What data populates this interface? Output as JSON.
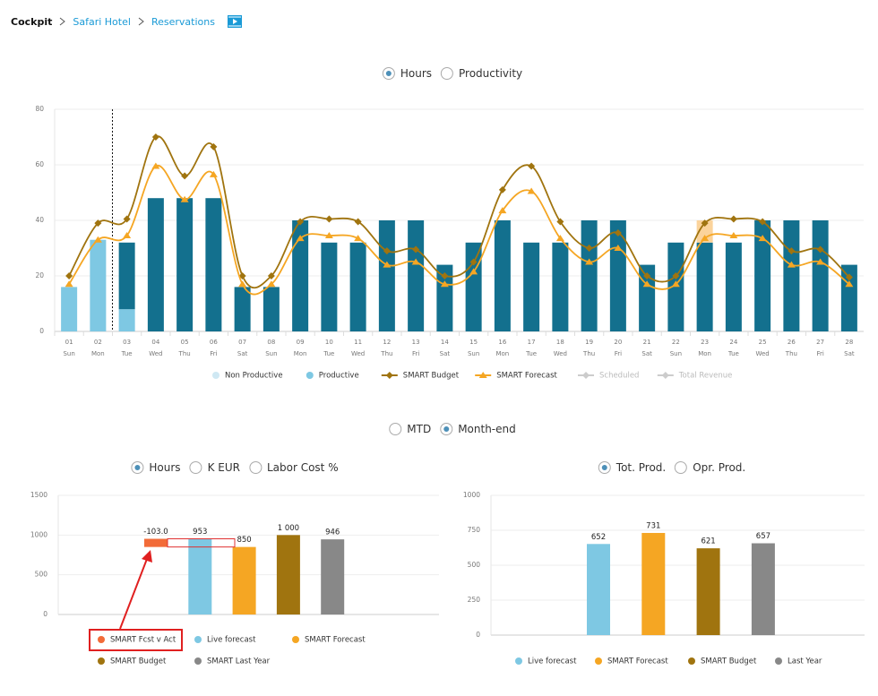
{
  "breadcrumb": [
    "Cockpit",
    "Safari Hotel",
    "Reservations"
  ],
  "toggles": [
    {
      "options": [
        "Hours",
        "Productivity"
      ],
      "selected": 0
    },
    {
      "options": [
        "MTD",
        "Month-end"
      ],
      "selected": 1
    },
    {
      "options": [
        "Hours",
        "K EUR",
        "Labor Cost %"
      ],
      "selected": 0
    },
    {
      "options": [
        "Tot. Prod.",
        "Opr. Prod."
      ],
      "selected": 0
    }
  ],
  "chart_data": [
    {
      "type": "combo",
      "categories": [
        "01",
        "02",
        "03",
        "04",
        "05",
        "06",
        "07",
        "08",
        "09",
        "10",
        "11",
        "12",
        "13",
        "14",
        "15",
        "16",
        "17",
        "18",
        "19",
        "20",
        "21",
        "22",
        "23",
        "24",
        "25",
        "26",
        "27",
        "28"
      ],
      "weekdays": [
        "Sun",
        "Mon",
        "Tue",
        "Wed",
        "Thu",
        "Fri",
        "Sat",
        "Sun",
        "Mon",
        "Tue",
        "Wed",
        "Thu",
        "Fri",
        "Sat",
        "Sun",
        "Mon",
        "Tue",
        "Wed",
        "Thu",
        "Fri",
        "Sat",
        "Sun",
        "Mon",
        "Tue",
        "Wed",
        "Thu",
        "Fri",
        "Sat"
      ],
      "ylim": [
        0,
        80
      ],
      "yticks": [
        0,
        20,
        40,
        60,
        80
      ],
      "grid": true,
      "series": [
        {
          "name": "Non Productive",
          "kind": "bar",
          "color": "#cfe8f3",
          "values": [
            null,
            null,
            null,
            null,
            null,
            null,
            null,
            null,
            null,
            null,
            null,
            null,
            null,
            null,
            null,
            null,
            null,
            null,
            null,
            null,
            null,
            null,
            null,
            null,
            null,
            null,
            null,
            null
          ]
        },
        {
          "name": "Productive",
          "kind": "bar",
          "color": "#7ec8e3",
          "values": [
            16,
            33,
            8,
            null,
            null,
            null,
            null,
            null,
            null,
            null,
            null,
            null,
            null,
            null,
            null,
            null,
            null,
            null,
            null,
            null,
            null,
            null,
            null,
            null,
            null,
            null,
            null,
            null
          ]
        },
        {
          "kind": "bar",
          "color": "#13708e",
          "values": [
            null,
            null,
            24,
            48,
            48,
            48,
            16,
            16,
            40,
            32,
            32,
            40,
            40,
            24,
            32,
            40,
            32,
            32,
            40,
            40,
            24,
            32,
            32,
            32,
            40,
            40,
            40,
            24
          ]
        },
        {
          "kind": "bar",
          "color": "#fbd39b",
          "values": [
            null,
            null,
            null,
            null,
            null,
            null,
            null,
            null,
            null,
            null,
            null,
            null,
            null,
            null,
            null,
            null,
            null,
            null,
            null,
            null,
            null,
            null,
            8,
            null,
            null,
            null,
            null,
            null
          ]
        },
        {
          "name": "SMART Budget",
          "kind": "line",
          "marker": "diamond",
          "color": "#a0740f",
          "values": [
            20,
            39,
            40.5,
            70,
            56,
            66.5,
            20,
            20,
            39.5,
            40.5,
            39.5,
            29,
            29.5,
            20,
            25,
            51,
            59.5,
            39.5,
            30,
            35.5,
            20,
            20,
            39,
            40.5,
            39.5,
            29,
            29.5,
            19.5
          ]
        },
        {
          "name": "SMART Forecast",
          "kind": "line",
          "marker": "triangle",
          "color": "#f5a623",
          "values": [
            17,
            33,
            34.5,
            59.5,
            47.5,
            56.5,
            17,
            17,
            33.5,
            34.5,
            33.5,
            24,
            25,
            17,
            21.5,
            43.5,
            50.5,
            33.5,
            25,
            30,
            17,
            17,
            33.5,
            34.5,
            33.5,
            24,
            25,
            17
          ]
        },
        {
          "name": "Scheduled",
          "kind": "line",
          "marker": "diamond",
          "color": "#cccccc",
          "disabled": true,
          "values": [
            null,
            null,
            null,
            null,
            null,
            null,
            null,
            null,
            null,
            null,
            null,
            null,
            null,
            null,
            null,
            null,
            null,
            null,
            null,
            null,
            null,
            null,
            null,
            null,
            null,
            null,
            null,
            null
          ]
        },
        {
          "name": "Total Revenue",
          "kind": "line",
          "marker": "diamond",
          "color": "#cccccc",
          "disabled": true,
          "values": [
            null,
            null,
            null,
            null,
            null,
            null,
            null,
            null,
            null,
            null,
            null,
            null,
            null,
            null,
            null,
            null,
            null,
            null,
            null,
            null,
            null,
            null,
            null,
            null,
            null,
            null,
            null,
            null
          ]
        }
      ]
    },
    {
      "type": "bar",
      "categories": [
        "SMART Fcst v Act",
        "Live forecast",
        "SMART Forecast",
        "SMART Budget",
        "SMART Last Year"
      ],
      "values": [
        -103,
        953,
        850,
        1000,
        946
      ],
      "value_labels": [
        "-103.0",
        "953",
        "850",
        "1 000",
        "946"
      ],
      "colors": [
        "#f26b38",
        "#7ec8e3",
        "#f5a623",
        "#a0740f",
        "#888888"
      ],
      "ylim": [
        0,
        1500
      ],
      "yticks": [
        0,
        500,
        1000,
        1500
      ],
      "grid": true
    },
    {
      "type": "bar",
      "categories": [
        "Live forecast",
        "SMART Forecast",
        "SMART Budget",
        "Last Year"
      ],
      "values": [
        652,
        731,
        621,
        657
      ],
      "colors": [
        "#7ec8e3",
        "#f5a623",
        "#a0740f",
        "#888888"
      ],
      "ylim": [
        0,
        1000
      ],
      "yticks": [
        0,
        250,
        500,
        750,
        1000
      ],
      "grid": true
    }
  ]
}
